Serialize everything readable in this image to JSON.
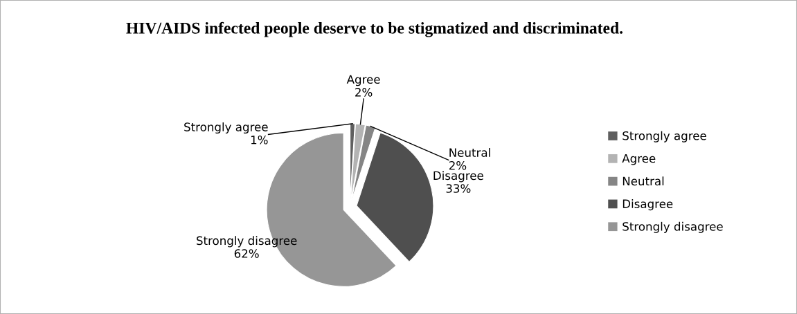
{
  "chart_data": {
    "type": "pie",
    "title": "HIV/AIDS infected people deserve to be stigmatized and discriminated.",
    "categories": [
      "Strongly agree",
      "Agree",
      "Neutral",
      "Disagree",
      "Strongly disagree"
    ],
    "values": [
      1,
      2,
      2,
      33,
      62
    ],
    "colors": [
      "#5f5f5f",
      "#b3b3b3",
      "#858585",
      "#4f4f4f",
      "#969696"
    ],
    "value_labels": [
      "1%",
      "2%",
      "2%",
      "33%",
      "62%"
    ],
    "legend": "right"
  }
}
